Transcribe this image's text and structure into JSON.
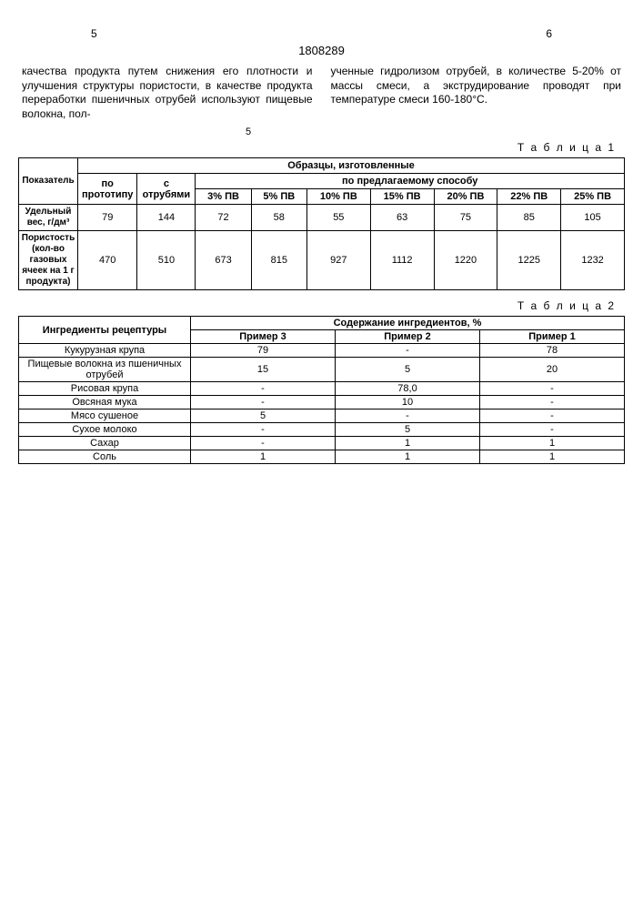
{
  "header": {
    "page_left": "5",
    "patent_no": "1808289",
    "page_right": "6"
  },
  "paragraph": {
    "left": "качества продукта путем снижения его плотности и улучшения структуры пористости, в качестве продукта переработки пшеничных отрубей используют пищевые волокна, пол-",
    "right": "ученные гидролизом отрубей, в количестве 5-20% от массы смеси, а экструдирование проводят при температуре смеси 160-180°С."
  },
  "mid_num": "5",
  "table1": {
    "label": "Т а б л и ц а 1",
    "col_indicator": "Показатель",
    "col_samples": "Образцы, изготовленные",
    "col_proto": "по прототипу",
    "col_bran": "с отрубями",
    "col_method": "по предлагаемому способу",
    "pv_cols": [
      "3% ПВ",
      "5% ПВ",
      "10% ПВ",
      "15% ПВ",
      "20% ПВ",
      "22% ПВ",
      "25% ПВ"
    ],
    "row1_label": "Удельный вес, г/дм³",
    "row1": [
      "79",
      "144",
      "72",
      "58",
      "55",
      "63",
      "75",
      "85",
      "105"
    ],
    "row2_label": "Пористость (кол-во газовых ячеек на 1 г продукта)",
    "row2": [
      "470",
      "510",
      "673",
      "815",
      "927",
      "1112",
      "1220",
      "1225",
      "1232"
    ]
  },
  "table2": {
    "label": "Т а б л и ц а 2",
    "col_ingr": "Ингредиенты рецептуры",
    "col_content": "Содержание ингредиентов, %",
    "examples": [
      "Пример 3",
      "Пример 2",
      "Пример 1"
    ],
    "rows": [
      {
        "name": "Кукурузная крупа",
        "v": [
          "79",
          "-",
          "78"
        ]
      },
      {
        "name": "Пищевые волокна из пшеничных отрубей",
        "v": [
          "15",
          "5",
          "20"
        ]
      },
      {
        "name": "Рисовая крупа",
        "v": [
          "-",
          "78,0",
          "-"
        ]
      },
      {
        "name": "Овсяная мука",
        "v": [
          "-",
          "10",
          "-"
        ]
      },
      {
        "name": "Мясо сушеное",
        "v": [
          "5",
          "-",
          "-"
        ]
      },
      {
        "name": "Сухое молоко",
        "v": [
          "-",
          "5",
          "-"
        ]
      },
      {
        "name": "Сахар",
        "v": [
          "-",
          "1",
          "1"
        ]
      },
      {
        "name": "Соль",
        "v": [
          "1",
          "1",
          "1"
        ]
      }
    ]
  }
}
